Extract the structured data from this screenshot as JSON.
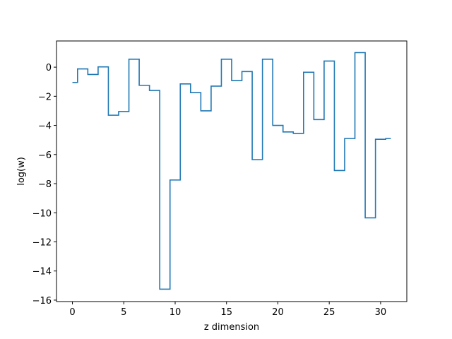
{
  "chart_data": {
    "type": "line",
    "drawstyle": "steps-mid",
    "title": "",
    "xlabel": "z dimension",
    "ylabel": "log(w)",
    "xlim": [
      -1.55,
      32.55
    ],
    "ylim": [
      -16.1,
      1.8
    ],
    "xticks": [
      0,
      5,
      10,
      15,
      20,
      25,
      30
    ],
    "yticks": [
      0,
      -2,
      -4,
      -6,
      -8,
      -10,
      -12,
      -14,
      -16
    ],
    "grid": false,
    "legend": "none",
    "series": [
      {
        "color": "#1f77b4",
        "x": [
          0,
          1,
          2,
          3,
          4,
          5,
          6,
          7,
          8,
          9,
          10,
          11,
          12,
          13,
          14,
          15,
          16,
          17,
          18,
          19,
          20,
          21,
          22,
          23,
          24,
          25,
          26,
          27,
          28,
          29,
          30,
          31
        ],
        "y": [
          -1.05,
          -0.12,
          -0.5,
          0.02,
          -3.3,
          -3.05,
          0.55,
          -1.25,
          -1.6,
          -15.25,
          -7.75,
          -1.15,
          -1.75,
          -3.0,
          -1.3,
          0.55,
          -0.92,
          -0.3,
          -6.35,
          0.55,
          -4.0,
          -4.45,
          -4.55,
          -0.35,
          -3.6,
          0.42,
          -7.1,
          -4.9,
          1.0,
          -10.35,
          -4.95,
          -4.9
        ]
      }
    ]
  }
}
